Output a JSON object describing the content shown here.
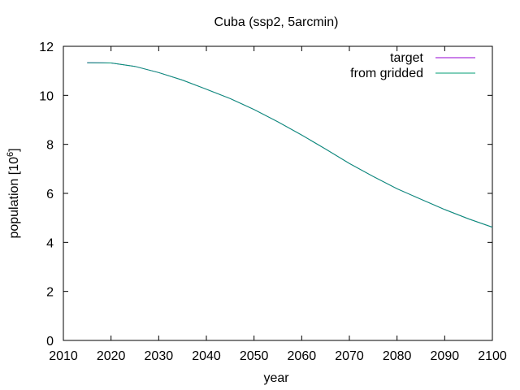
{
  "chart_data": {
    "type": "line",
    "title": "Cuba (ssp2, 5arcmin)",
    "xlabel": "year",
    "ylabel_main": "population [10",
    "ylabel_exp": "6",
    "ylabel_close": "]",
    "xlim": [
      2010,
      2100
    ],
    "ylim": [
      0,
      12
    ],
    "xticks": [
      2010,
      2020,
      2030,
      2040,
      2050,
      2060,
      2070,
      2080,
      2090,
      2100
    ],
    "yticks": [
      0,
      2,
      4,
      6,
      8,
      10,
      12
    ],
    "grid": false,
    "legend_position": "top-right",
    "x": [
      2015,
      2020,
      2025,
      2030,
      2035,
      2040,
      2045,
      2050,
      2055,
      2060,
      2065,
      2070,
      2075,
      2080,
      2085,
      2090,
      2095,
      2100
    ],
    "series": [
      {
        "name": "target",
        "color": "#9400d3",
        "values": [
          11.33,
          11.32,
          11.18,
          10.93,
          10.62,
          10.25,
          9.87,
          9.42,
          8.92,
          8.38,
          7.81,
          7.22,
          6.69,
          6.19,
          5.76,
          5.34,
          4.96,
          4.62
        ]
      },
      {
        "name": "from gridded",
        "color": "#009e73",
        "values": [
          11.33,
          11.32,
          11.18,
          10.93,
          10.62,
          10.25,
          9.87,
          9.42,
          8.92,
          8.38,
          7.81,
          7.22,
          6.69,
          6.19,
          5.76,
          5.34,
          4.96,
          4.62
        ]
      }
    ]
  }
}
